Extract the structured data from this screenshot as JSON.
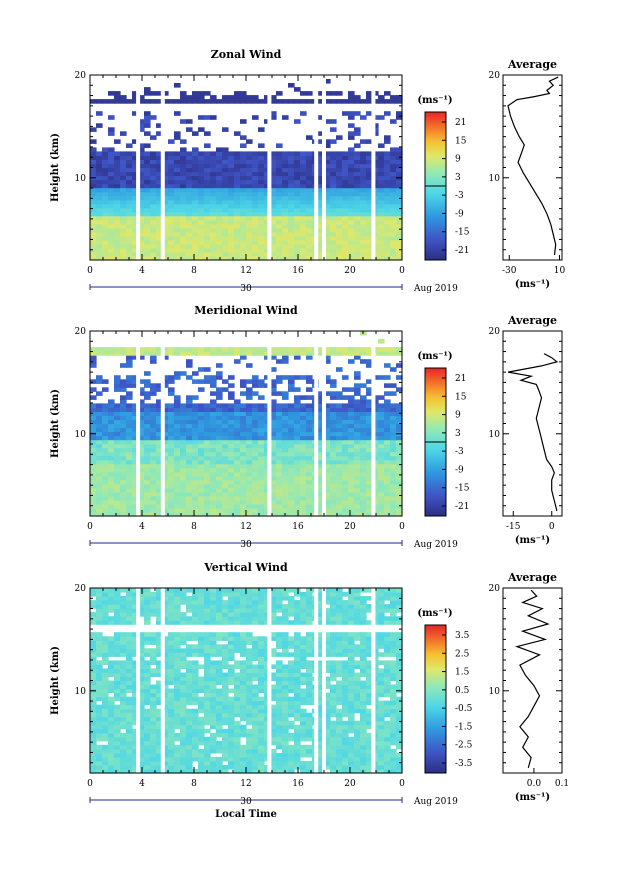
{
  "chart_data": [
    {
      "type": "heatmap",
      "title": "Zonal Wind",
      "ylabel": "Height (km)",
      "y_ticks": [
        "10",
        "20"
      ],
      "ylim": [
        2,
        20
      ],
      "x_ticks": [
        "0",
        "4",
        "8",
        "12",
        "16",
        "20",
        "0"
      ],
      "xlim": [
        0,
        24
      ],
      "date_day": "30",
      "date_label": "Aug 2019",
      "colorbar_unit": "(ms⁻¹)",
      "colorbar_ticks": [
        "21",
        "15",
        "9",
        "3",
        "-3",
        "-9",
        "-15",
        "-21"
      ],
      "colorbar_range": [
        -24,
        24
      ],
      "data_gaps_hours": [
        3.7,
        5.6,
        13.8,
        17.4,
        18.0,
        21.8
      ],
      "profile": {
        "title": "Average",
        "x_ticks": [
          "-30",
          "10"
        ],
        "xlabel": "(ms⁻¹)",
        "xlim": [
          -35,
          12
        ],
        "points": [
          [
            6,
            2.5
          ],
          [
            7,
            3.5
          ],
          [
            5,
            4.5
          ],
          [
            3,
            5.5
          ],
          [
            0,
            6.5
          ],
          [
            -4,
            7.5
          ],
          [
            -9,
            8.5
          ],
          [
            -14,
            9.5
          ],
          [
            -19,
            10.5
          ],
          [
            -23,
            11.5
          ],
          [
            -20,
            12.5
          ],
          [
            -18,
            13.2
          ],
          [
            -22,
            14
          ],
          [
            -26,
            15
          ],
          [
            -29,
            16
          ],
          [
            -31,
            17
          ],
          [
            -24,
            17.6
          ],
          [
            -10,
            17.9
          ],
          [
            2,
            18.2
          ],
          [
            0,
            18.5
          ],
          [
            5,
            19.0
          ],
          [
            2,
            19.4
          ],
          [
            9,
            19.8
          ]
        ]
      }
    },
    {
      "type": "heatmap",
      "title": "Meridional Wind",
      "ylabel": "Height (km)",
      "y_ticks": [
        "10",
        "20"
      ],
      "ylim": [
        2,
        20
      ],
      "x_ticks": [
        "0",
        "4",
        "8",
        "12",
        "16",
        "20",
        "0"
      ],
      "xlim": [
        0,
        24
      ],
      "date_day": "30",
      "date_label": "Aug 2019",
      "colorbar_unit": "(ms⁻¹)",
      "colorbar_ticks": [
        "21",
        "15",
        "9",
        "3",
        "-3",
        "-9",
        "-15",
        "-21"
      ],
      "colorbar_range": [
        -24,
        24
      ],
      "data_gaps_hours": [
        3.7,
        5.6,
        13.8,
        17.4,
        18.0,
        21.8
      ],
      "profile": {
        "title": "Average",
        "x_ticks": [
          "-15",
          "0"
        ],
        "xlabel": "(ms⁻¹)",
        "xlim": [
          -19,
          4
        ],
        "points": [
          [
            2,
            2.5
          ],
          [
            1,
            3.5
          ],
          [
            0,
            4.5
          ],
          [
            0,
            5.5
          ],
          [
            1,
            6.2
          ],
          [
            0,
            6.8
          ],
          [
            -2,
            7.5
          ],
          [
            -3,
            8.5
          ],
          [
            -4,
            9.5
          ],
          [
            -5,
            10.5
          ],
          [
            -6,
            11.5
          ],
          [
            -5,
            12.5
          ],
          [
            -4,
            13.5
          ],
          [
            -5,
            14.2
          ],
          [
            -6,
            14.8
          ],
          [
            -12,
            15.2
          ],
          [
            -8,
            15.6
          ],
          [
            -17,
            16.0
          ],
          [
            -4,
            16.6
          ],
          [
            2,
            17.0
          ],
          [
            0,
            17.4
          ],
          [
            -3,
            17.8
          ]
        ]
      }
    },
    {
      "type": "heatmap",
      "title": "Vertical Wind",
      "ylabel": "Height (km)",
      "xlabel": "Local Time",
      "y_ticks": [
        "10",
        "20"
      ],
      "ylim": [
        2,
        20
      ],
      "x_ticks": [
        "0",
        "4",
        "8",
        "12",
        "16",
        "20",
        "0"
      ],
      "xlim": [
        0,
        24
      ],
      "date_day": "30",
      "date_label": "Aug 2019",
      "colorbar_unit": "(ms⁻¹)",
      "colorbar_ticks": [
        "3.5",
        "2.5",
        "1.5",
        "0.5",
        "-0.5",
        "-1.5",
        "-2.5",
        "-3.5"
      ],
      "colorbar_range": [
        -4,
        4
      ],
      "data_gaps_hours": [
        3.7,
        5.6,
        13.8,
        17.4,
        18.0,
        21.8
      ],
      "profile": {
        "title": "Average",
        "x_ticks": [
          "0.0",
          "0.1"
        ],
        "xlabel": "(ms⁻¹)",
        "xlim": [
          -0.11,
          0.1
        ],
        "points": [
          [
            -0.02,
            2.5
          ],
          [
            -0.01,
            3.5
          ],
          [
            -0.04,
            4.5
          ],
          [
            -0.02,
            5.5
          ],
          [
            -0.05,
            6.5
          ],
          [
            -0.02,
            7.5
          ],
          [
            0.0,
            8.5
          ],
          [
            0.02,
            9.5
          ],
          [
            0.0,
            10.5
          ],
          [
            -0.03,
            11.5
          ],
          [
            -0.05,
            12.5
          ],
          [
            0.02,
            13.5
          ],
          [
            -0.06,
            14.3
          ],
          [
            0.04,
            15.0
          ],
          [
            -0.04,
            15.8
          ],
          [
            0.05,
            16.5
          ],
          [
            -0.02,
            17.3
          ],
          [
            0.03,
            18.0
          ],
          [
            -0.04,
            18.6
          ],
          [
            0.01,
            19.2
          ],
          [
            -0.01,
            19.8
          ]
        ]
      }
    }
  ]
}
